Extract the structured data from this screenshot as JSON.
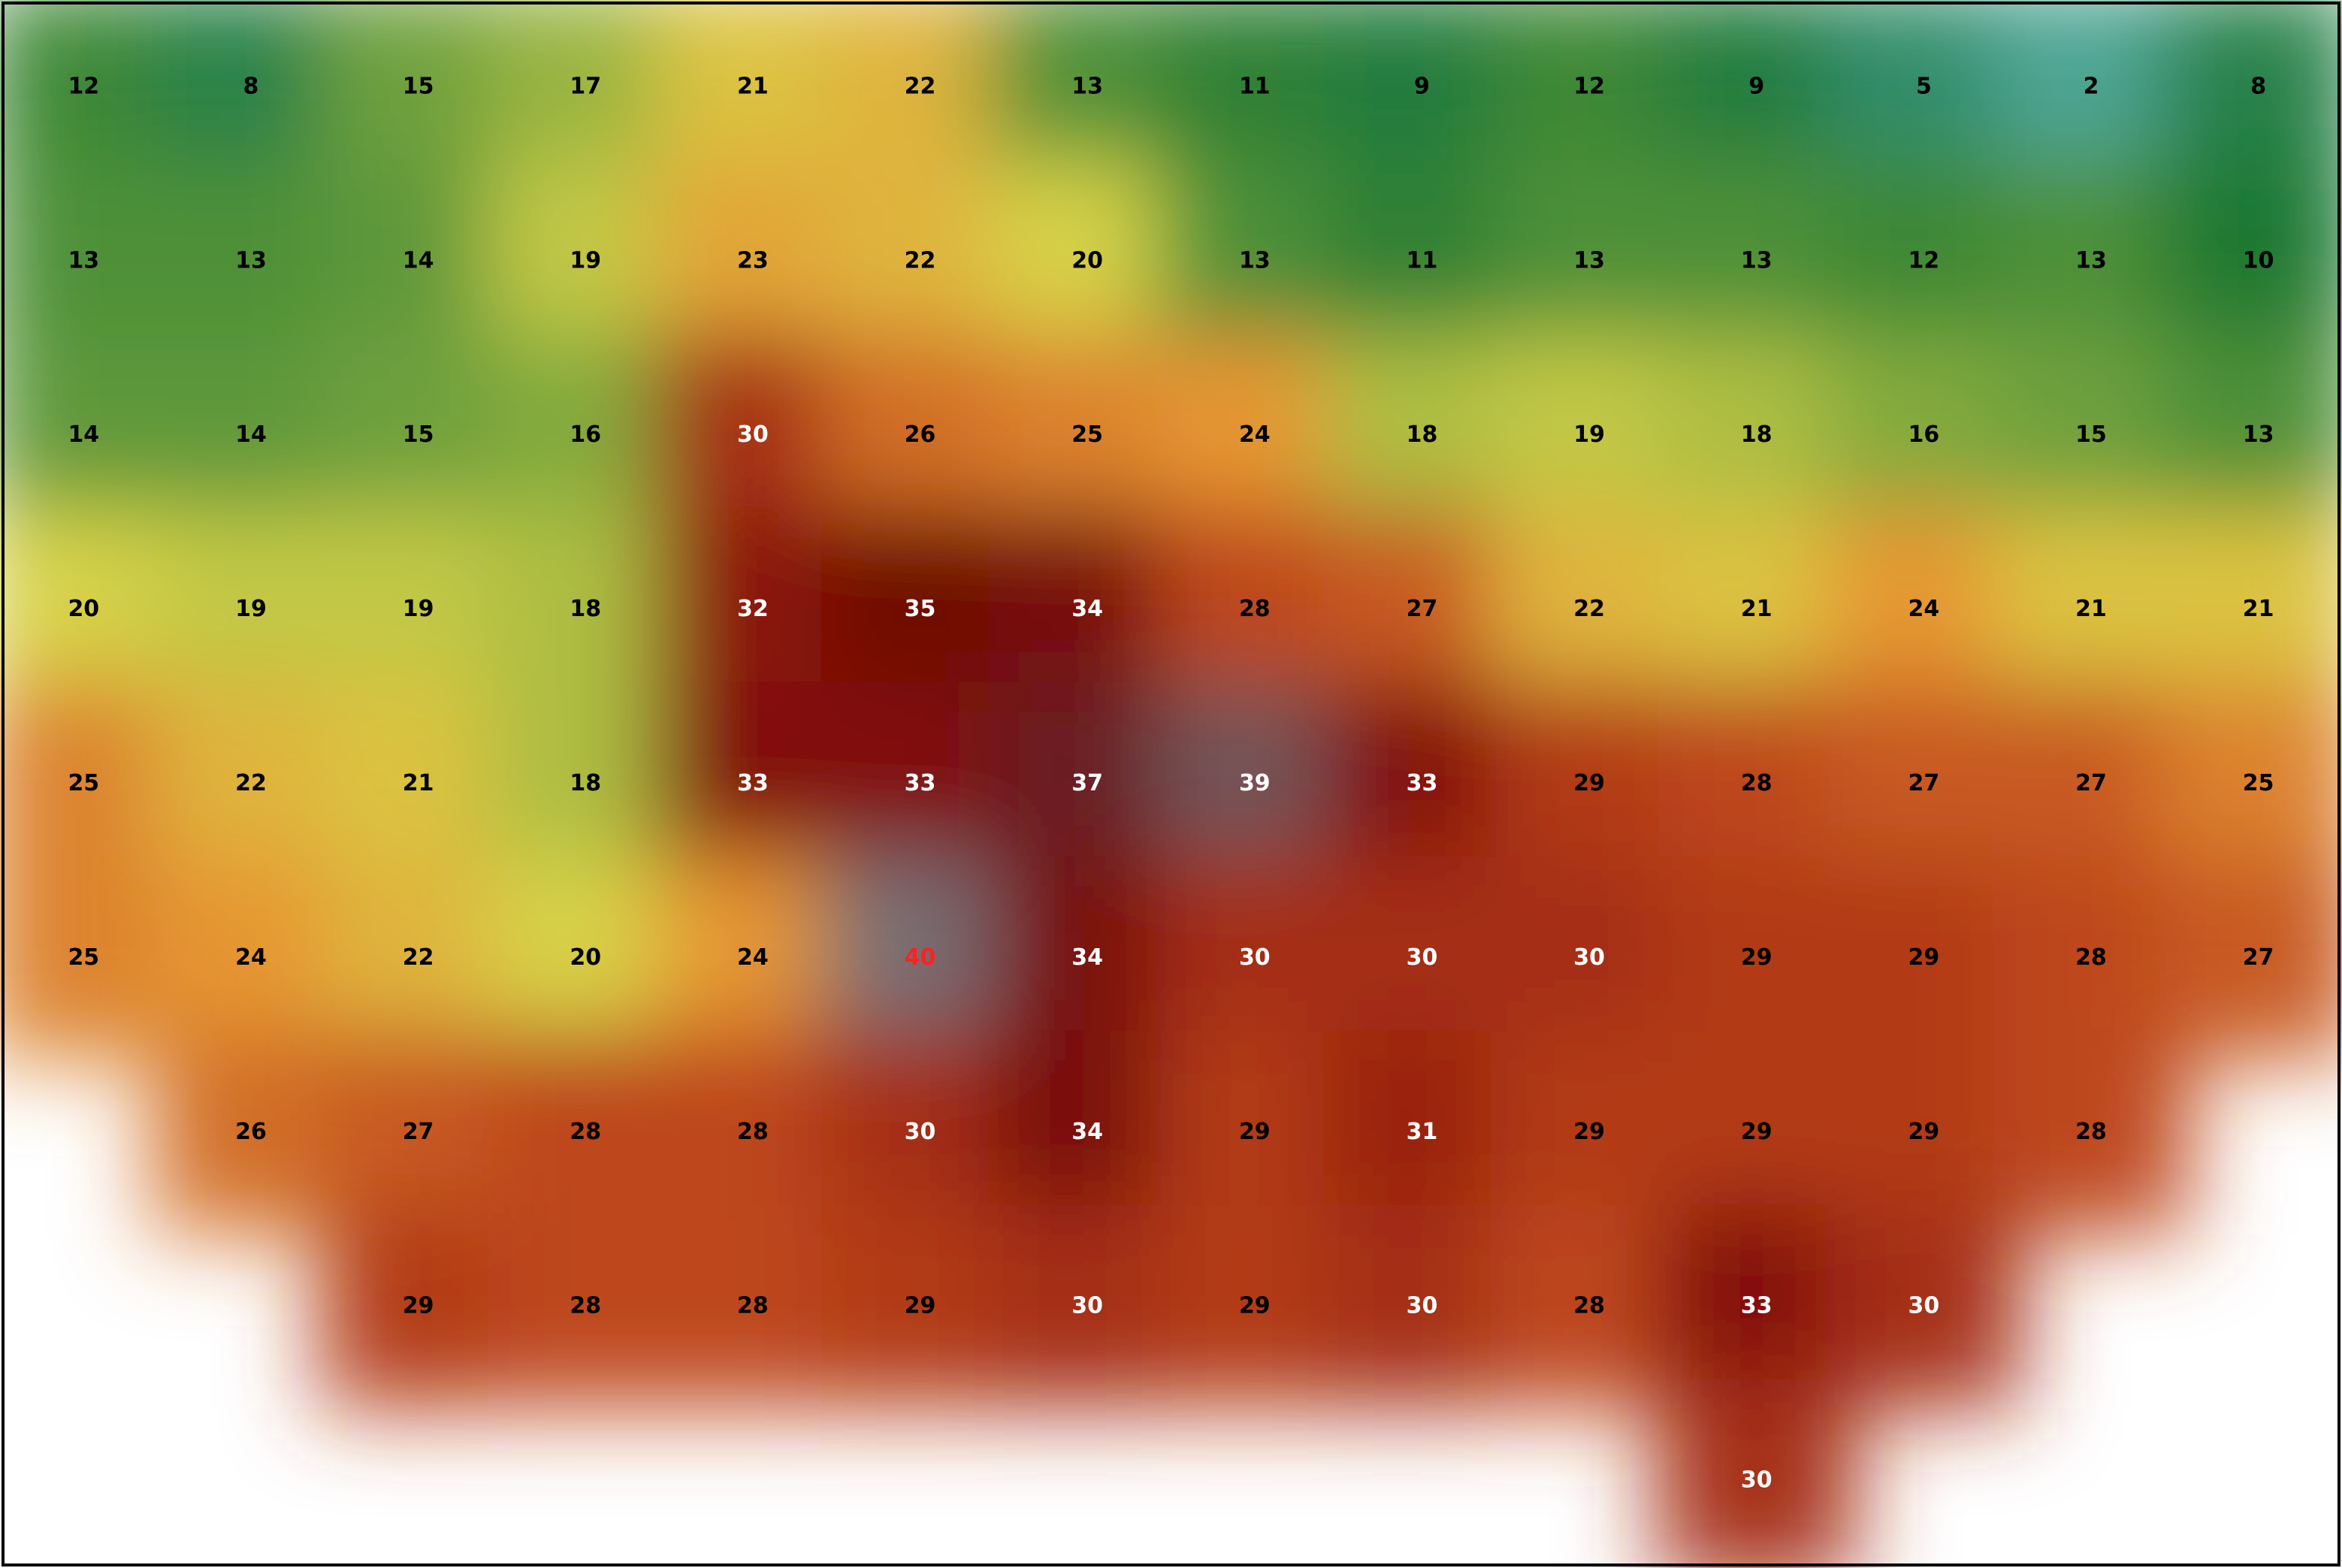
{
  "grid": {
    "rows": [
      [
        12,
        8,
        15,
        17,
        21,
        22,
        13,
        11,
        9,
        12,
        9,
        5,
        2,
        8
      ],
      [
        13,
        13,
        14,
        19,
        23,
        22,
        20,
        13,
        11,
        13,
        13,
        12,
        13,
        10
      ],
      [
        14,
        14,
        15,
        16,
        30,
        26,
        25,
        24,
        18,
        19,
        18,
        16,
        15,
        13
      ],
      [
        20,
        19,
        19,
        18,
        32,
        35,
        34,
        28,
        27,
        22,
        21,
        24,
        21,
        21
      ],
      [
        25,
        22,
        21,
        18,
        33,
        33,
        37,
        39,
        33,
        29,
        28,
        27,
        27,
        25
      ],
      [
        25,
        24,
        22,
        20,
        24,
        40,
        34,
        30,
        30,
        30,
        29,
        29,
        28,
        27
      ],
      [
        null,
        26,
        27,
        28,
        28,
        30,
        34,
        29,
        31,
        29,
        29,
        29,
        28,
        null
      ],
      [
        null,
        null,
        29,
        28,
        28,
        29,
        30,
        29,
        30,
        28,
        33,
        30,
        null,
        null
      ],
      [
        null,
        null,
        null,
        null,
        null,
        null,
        null,
        null,
        null,
        null,
        30,
        null,
        null,
        null
      ]
    ]
  }
}
